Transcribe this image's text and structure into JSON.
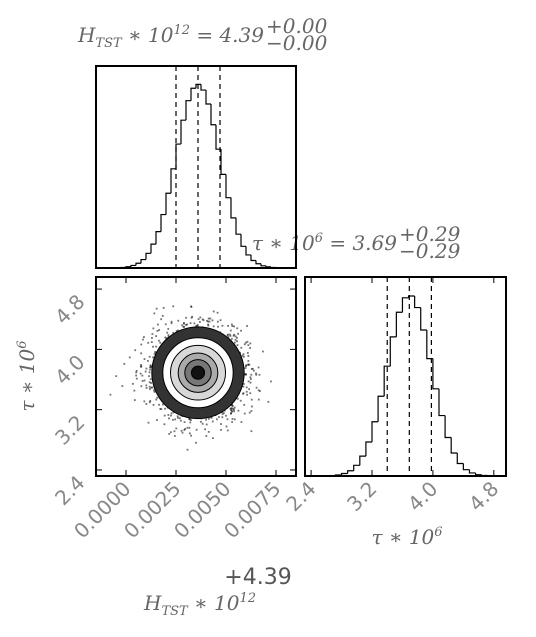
{
  "chart_data": [
    {
      "type": "histogram",
      "title": {
        "base": "H",
        "sub": "TST",
        "times": " ∗ 10",
        "exp": "12",
        "eq": " = 4.39",
        "upper": "+0.00",
        "lower": "−0.00"
      },
      "bins": [
        -0.0015,
        -0.00125,
        -0.001,
        -0.00075,
        -0.0005,
        -0.00025,
        0,
        0.00025,
        0.0005,
        0.00075,
        0.001,
        0.00125,
        0.0015,
        0.00175,
        0.002,
        0.00225,
        0.0025,
        0.00275,
        0.003,
        0.00325,
        0.0035,
        0.00375,
        0.004,
        0.00425,
        0.0045,
        0.00475,
        0.005,
        0.00525,
        0.0055,
        0.00575,
        0.006,
        0.00625,
        0.0065,
        0.00675,
        0.007,
        0.00725,
        0.0075,
        0.00775,
        0.008,
        0.00825,
        0.0085
      ],
      "values": [
        0,
        0,
        0,
        1,
        1,
        3,
        7,
        14,
        26,
        46,
        80,
        130,
        198,
        291,
        407,
        540,
        675,
        805,
        911,
        979,
        1000,
        969,
        893,
        780,
        647,
        510,
        383,
        273,
        184,
        118,
        71,
        41,
        23,
        12,
        6,
        3,
        1,
        0,
        0,
        0
      ],
      "quantiles": [
        0.0025,
        0.0036,
        0.0047
      ],
      "xlim": [
        -0.0015,
        0.0085
      ],
      "ylim": [
        0,
        1100
      ],
      "color": "#000000"
    },
    {
      "type": "hist2d",
      "xlim": [
        -0.0015,
        0.0085
      ],
      "ylim": [
        2.32,
        4.96
      ],
      "xticks": [
        {
          "value": 0,
          "label": "0.0000"
        },
        0.0025,
        {
          "value": 0.005,
          "label": "0.0050"
        },
        0.0075
      ],
      "x_offset": "+4.39",
      "xlabel": {
        "base": "H",
        "sub": "TST",
        "times": " ∗ 10",
        "exp": "12"
      },
      "yticks": [
        2.4,
        3.2,
        {
          "value": 4,
          "label": "4.0"
        },
        4.8
      ],
      "ylabel": {
        "base": "τ",
        "times": " ∗ 10",
        "exp": "6"
      },
      "color": "#000000"
    },
    {
      "type": "histogram",
      "title": {
        "base": "τ",
        "times": " ∗ 10",
        "exp": "6",
        "eq": " = 3.69",
        "upper": "+0.29",
        "lower": "−0.29"
      },
      "bins": [
        2.32,
        2.4,
        2.48,
        2.56,
        2.64,
        2.72,
        2.8,
        2.88,
        2.96,
        3.04,
        3.12,
        3.2,
        3.28,
        3.36,
        3.44,
        3.52,
        3.6,
        3.68,
        3.76,
        3.84,
        3.92,
        4.0,
        4.08,
        4.16,
        4.24,
        4.32,
        4.4,
        4.48,
        4.56,
        4.64,
        4.72,
        4.8,
        4.88,
        4.96
      ],
      "values": [
        0,
        0,
        0,
        1,
        2,
        6,
        14,
        29,
        59,
        110,
        188,
        300,
        441,
        607,
        769,
        905,
        985,
        995,
        931,
        807,
        649,
        482,
        334,
        213,
        127,
        69,
        35,
        17,
        7,
        3,
        1,
        0,
        0
      ],
      "quantiles": [
        3.4,
        3.69,
        3.98
      ],
      "xlim": [
        2.32,
        4.96
      ],
      "ylim": [
        0,
        1100
      ],
      "xticks": [
        2.4,
        3.2,
        {
          "value": 4,
          "label": "4.0"
        },
        4.8
      ],
      "xlabel": {
        "base": "τ",
        "times": " ∗ 10",
        "exp": "6"
      },
      "color": "#000000"
    }
  ]
}
